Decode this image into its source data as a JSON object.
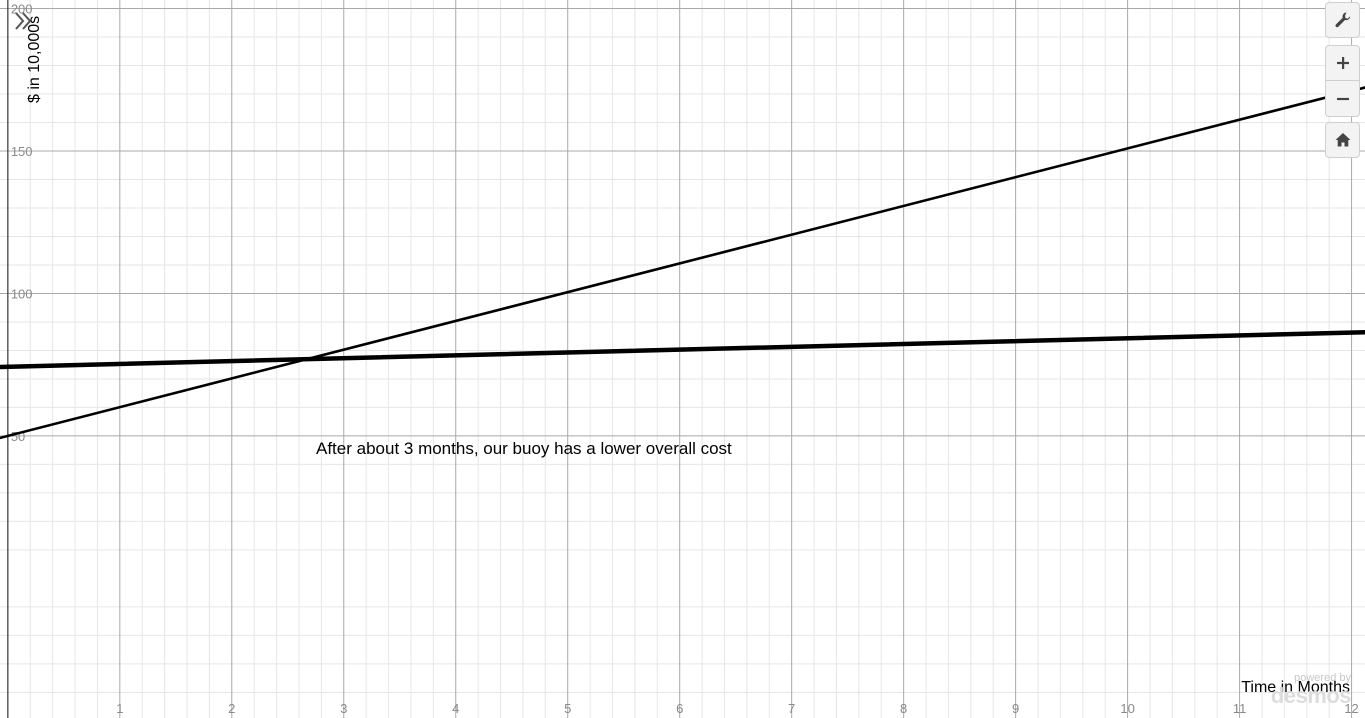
{
  "chart_data": {
    "type": "line",
    "xlabel": "Time in Months",
    "ylabel": "$ in 10,000s",
    "xlim": [
      -0.07,
      12.12
    ],
    "ylim": [
      -49,
      203
    ],
    "x_ticks": [
      1,
      2,
      3,
      4,
      5,
      6,
      7,
      8,
      9,
      10,
      11,
      12
    ],
    "y_ticks": [
      50,
      100,
      150,
      200
    ],
    "grid": true,
    "series": [
      {
        "type": "line",
        "x": [
          -0.07,
          12.12
        ],
        "y": [
          49.3,
          172.3
        ],
        "color": "#000000",
        "weight": "normal"
      },
      {
        "type": "line",
        "x": [
          -0.07,
          12.12
        ],
        "y": [
          74.2,
          86.4
        ],
        "color": "#000000",
        "weight": "bold"
      }
    ],
    "annotations": [
      {
        "text": "After about 3 months, our buoy has a lower overall cost",
        "x": 2.8,
        "y": 77
      }
    ]
  },
  "toolbar": {
    "expand_icon": "double-chevron-right-icon",
    "settings_icon": "wrench-icon",
    "zoom_in_icon": "plus-icon",
    "zoom_out_icon": "minus-icon",
    "home_icon": "home-icon"
  },
  "branding": {
    "powered_by": "powered by",
    "name": "desmos"
  }
}
